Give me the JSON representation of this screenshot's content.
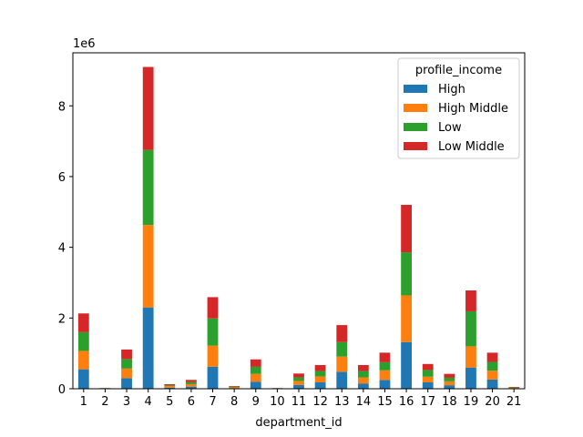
{
  "chart_data": {
    "type": "bar",
    "stacked": true,
    "xlabel": "department_id",
    "ylabel": "",
    "y_offset_label": "1e6",
    "y_scale": 1000000,
    "ylim": [
      0,
      9500000
    ],
    "yticks": [
      0,
      2,
      4,
      6,
      8
    ],
    "grid": false,
    "legend": {
      "title": "profile_income",
      "position": "top-right"
    },
    "categories": [
      "1",
      "2",
      "3",
      "4",
      "5",
      "6",
      "7",
      "8",
      "9",
      "10",
      "11",
      "12",
      "13",
      "14",
      "15",
      "16",
      "17",
      "18",
      "19",
      "20",
      "21"
    ],
    "series": [
      {
        "name": "High",
        "color": "#1f77b4",
        "values": [
          550000,
          5000,
          300000,
          2300000,
          30000,
          60000,
          620000,
          18000,
          200000,
          5000,
          110000,
          180000,
          480000,
          150000,
          250000,
          1320000,
          180000,
          100000,
          600000,
          260000,
          12000
        ]
      },
      {
        "name": "High Middle",
        "color": "#ff7f0e",
        "values": [
          520000,
          5000,
          270000,
          2330000,
          40000,
          70000,
          600000,
          20000,
          220000,
          5000,
          110000,
          170000,
          430000,
          170000,
          270000,
          1320000,
          160000,
          110000,
          600000,
          250000,
          13000
        ]
      },
      {
        "name": "Low",
        "color": "#2ca02c",
        "values": [
          530000,
          6000,
          270000,
          2120000,
          30000,
          60000,
          770000,
          20000,
          200000,
          5000,
          100000,
          150000,
          410000,
          180000,
          230000,
          1220000,
          190000,
          100000,
          990000,
          250000,
          13000
        ]
      },
      {
        "name": "Low Middle",
        "color": "#d62728",
        "values": [
          530000,
          5000,
          270000,
          2350000,
          30000,
          60000,
          600000,
          20000,
          210000,
          5000,
          110000,
          170000,
          480000,
          170000,
          270000,
          1340000,
          170000,
          110000,
          590000,
          260000,
          12000
        ]
      }
    ]
  }
}
